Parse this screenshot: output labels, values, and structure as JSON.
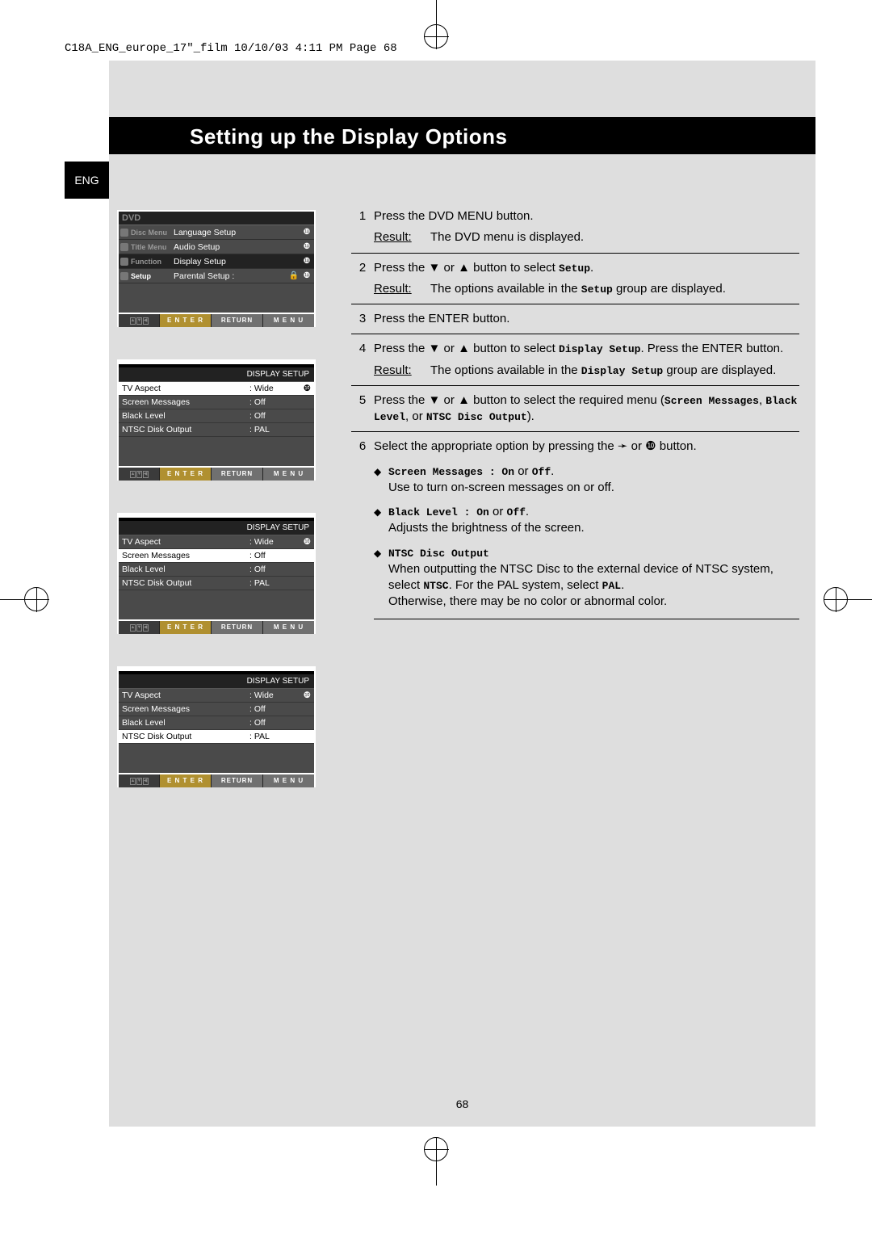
{
  "file_header": "C18A_ENG_europe_17\"_film  10/10/03  4:11 PM  Page 68",
  "lang_tab": "ENG",
  "title": "Setting up the Display Options",
  "page_number": "68",
  "osd_dvd": {
    "title": "DVD",
    "side_items": [
      "Disc Menu",
      "Title Menu",
      "Function",
      "Setup"
    ],
    "rows": [
      {
        "label": "Language Setup",
        "arrow": "❿"
      },
      {
        "label": "Audio Setup",
        "arrow": "❿"
      },
      {
        "label": "Display Setup",
        "arrow": "❿",
        "selected": true
      },
      {
        "label": "Parental Setup :",
        "arrow": "❿",
        "lock": true
      }
    ],
    "buttons": [
      "E N T E R",
      "RETURN",
      "M E N U"
    ]
  },
  "osd_display": [
    {
      "title": "DISPLAY SETUP",
      "rows": [
        {
          "l": "TV Aspect",
          "v": ": Wide",
          "arrow": "❿",
          "hl": true
        },
        {
          "l": "Screen Messages",
          "v": ": Off"
        },
        {
          "l": "Black Level",
          "v": ": Off"
        },
        {
          "l": "NTSC Disk Output",
          "v": ": PAL"
        }
      ]
    },
    {
      "title": "DISPLAY SETUP",
      "rows": [
        {
          "l": "TV Aspect",
          "v": ": Wide",
          "arrow": "❿"
        },
        {
          "l": "Screen Messages",
          "v": ": Off",
          "hl": true
        },
        {
          "l": "Black Level",
          "v": ": Off"
        },
        {
          "l": "NTSC Disk Output",
          "v": ": PAL"
        }
      ]
    },
    {
      "title": "DISPLAY SETUP",
      "rows": [
        {
          "l": "TV Aspect",
          "v": ": Wide",
          "arrow": "❿"
        },
        {
          "l": "Screen Messages",
          "v": ": Off"
        },
        {
          "l": "Black Level",
          "v": ": Off"
        },
        {
          "l": "NTSC Disk Output",
          "v": ": PAL",
          "hl": true
        }
      ]
    }
  ],
  "steps": {
    "s1": {
      "num": "1",
      "body": "Press the DVD MENU button.",
      "result": "The DVD menu is displayed."
    },
    "s2": {
      "num": "2",
      "body_a": "Press the ",
      "body_b": " or ",
      "body_c": " button to select ",
      "mono": "Setup",
      "body_d": ".",
      "result_a": "The options available in the ",
      "result_b": " group are displayed."
    },
    "s3": {
      "num": "3",
      "body": "Press the ENTER button."
    },
    "s4": {
      "num": "4",
      "body_a": "Press the ",
      "body_b": " or ",
      "body_c": " button to select ",
      "mono": "Display Setup",
      "body_d": ". Press the ENTER button.",
      "result_a": "The options available in the ",
      "result_b": " group are displayed."
    },
    "s5": {
      "num": "5",
      "body_a": "Press the ",
      "body_b": " or ",
      "body_c": " button to select the required menu (",
      "mono1": "Screen Messages",
      "mono2": "Black Level",
      "mono3": "NTSC Disc Output",
      "sep_or": ", or ",
      "sep_c": ", ",
      "body_d": ")."
    },
    "s6": {
      "num": "6",
      "body_a": "Select the appropriate option by pressing the ",
      "body_b": " or ",
      "body_c": " button."
    }
  },
  "options": {
    "sm": {
      "title_a": "Screen Messages : On",
      "title_mid": " or ",
      "title_b": "Off",
      "desc": "Use to turn on-screen messages on or off."
    },
    "bl": {
      "title_a": "Black Level : On",
      "title_mid": " or ",
      "title_b": "Off",
      "desc": "Adjusts the brightness of the screen."
    },
    "ntsc": {
      "title": "NTSC Disc Output",
      "desc_a": "When outputting the NTSC Disc to the external device of NTSC system, select ",
      "mono1": "NTSC",
      "desc_b": ". For the PAL system, select ",
      "mono2": "PAL",
      "desc_c": ".",
      "desc2": "Otherwise, there may be no color or abnormal color."
    }
  },
  "glyph": {
    "down": "▼",
    "up": "▲",
    "left": "➛",
    "right": "❿",
    "result_label": "Result:",
    "lock": "🔒"
  }
}
